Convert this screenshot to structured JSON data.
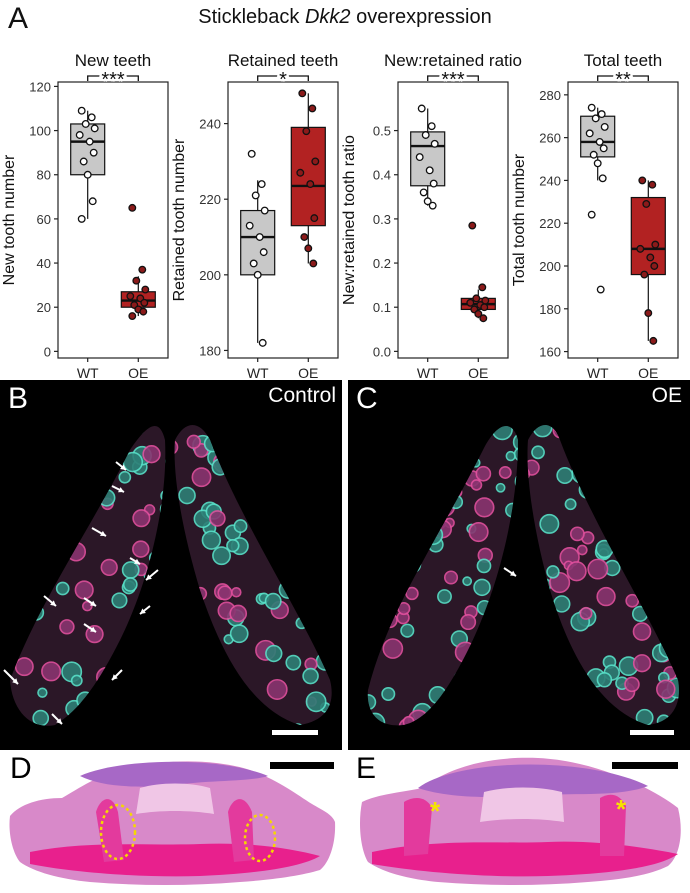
{
  "figure": {
    "panel_a_letter": "A",
    "title_prefix": "Stickleback ",
    "title_gene": "Dkk2",
    "title_suffix": " overexpression"
  },
  "colors": {
    "wt_fill": "#c8c8c8",
    "oe_fill": "#b22222",
    "wt_point": "#ffffff",
    "oe_point": "#8b1a1a"
  },
  "chart_data": [
    {
      "type": "box",
      "title": "New teeth",
      "ylabel": "New tooth number",
      "categories": [
        "WT",
        "OE"
      ],
      "ylim": [
        -3,
        122
      ],
      "yticks": [
        0,
        20,
        40,
        60,
        80,
        100,
        120
      ],
      "tick_labels": [
        "0",
        "20",
        "40",
        "60",
        "80",
        "100",
        "120"
      ],
      "significance": "***",
      "boxes": [
        {
          "group": "WT",
          "min": 60,
          "q1": 80,
          "median": 95,
          "q3": 103,
          "max": 109
        },
        {
          "group": "OE",
          "min": 16,
          "q1": 20,
          "median": 23,
          "q3": 27,
          "max": 34
        }
      ],
      "points": [
        {
          "group": "WT",
          "values": [
            109,
            106,
            103,
            101,
            98,
            95,
            90,
            86,
            80,
            68,
            60
          ]
        },
        {
          "group": "OE",
          "values": [
            65,
            37,
            32,
            28,
            25,
            24,
            22,
            21,
            19,
            18,
            16
          ]
        }
      ]
    },
    {
      "type": "box",
      "title": "Retained teeth",
      "ylabel": "Retained tooth number",
      "categories": [
        "WT",
        "OE"
      ],
      "ylim": [
        178,
        251
      ],
      "yticks": [
        180,
        200,
        220,
        240
      ],
      "tick_labels": [
        "180",
        "200",
        "220",
        "240"
      ],
      "significance": "*",
      "boxes": [
        {
          "group": "WT",
          "min": 182,
          "q1": 200,
          "median": 210,
          "q3": 217,
          "max": 225
        },
        {
          "group": "OE",
          "min": 203,
          "q1": 213,
          "median": 223.5,
          "q3": 239,
          "max": 248
        }
      ],
      "points": [
        {
          "group": "WT",
          "values": [
            232,
            224,
            221,
            217,
            213,
            210,
            206,
            203,
            200,
            182
          ]
        },
        {
          "group": "OE",
          "values": [
            248,
            244,
            238,
            230,
            227,
            224,
            215,
            210,
            207,
            203
          ]
        }
      ]
    },
    {
      "type": "box",
      "title": "New:retained ratio",
      "ylabel": "New:retained tooth ratio",
      "categories": [
        "WT",
        "OE"
      ],
      "ylim": [
        -0.015,
        0.61
      ],
      "yticks": [
        0.0,
        0.1,
        0.2,
        0.3,
        0.4,
        0.5
      ],
      "tick_labels": [
        "0.0",
        "0.1",
        "0.2",
        "0.3",
        "0.4",
        "0.5"
      ],
      "significance": "***",
      "boxes": [
        {
          "group": "WT",
          "min": 0.33,
          "q1": 0.375,
          "median": 0.465,
          "q3": 0.497,
          "max": 0.55
        },
        {
          "group": "OE",
          "min": 0.075,
          "q1": 0.095,
          "median": 0.107,
          "q3": 0.12,
          "max": 0.14
        }
      ],
      "points": [
        {
          "group": "WT",
          "values": [
            0.55,
            0.51,
            0.49,
            0.47,
            0.44,
            0.41,
            0.38,
            0.36,
            0.34,
            0.33
          ]
        },
        {
          "group": "OE",
          "values": [
            0.285,
            0.145,
            0.12,
            0.115,
            0.11,
            0.105,
            0.1,
            0.095,
            0.085,
            0.075
          ]
        }
      ]
    },
    {
      "type": "box",
      "title": "Total teeth",
      "ylabel": "Total tooth number",
      "categories": [
        "WT",
        "OE"
      ],
      "ylim": [
        157,
        286
      ],
      "yticks": [
        160,
        180,
        200,
        220,
        240,
        260,
        280
      ],
      "tick_labels": [
        "160",
        "180",
        "200",
        "220",
        "240",
        "260",
        "280"
      ],
      "significance": "**",
      "boxes": [
        {
          "group": "WT",
          "min": 240,
          "q1": 251,
          "median": 258,
          "q3": 270,
          "max": 274
        },
        {
          "group": "OE",
          "min": 165,
          "q1": 196,
          "median": 208,
          "q3": 232,
          "max": 240
        }
      ],
      "points": [
        {
          "group": "WT",
          "values": [
            274,
            271,
            269,
            265,
            262,
            258,
            255,
            252,
            248,
            241,
            224,
            189
          ]
        },
        {
          "group": "OE",
          "values": [
            240,
            238,
            229,
            210,
            208,
            204,
            200,
            196,
            178,
            165
          ]
        }
      ]
    }
  ],
  "panels": {
    "b": {
      "letter": "B",
      "label": "Control"
    },
    "c": {
      "letter": "C",
      "label": "OE"
    },
    "d": {
      "letter": "D"
    },
    "e": {
      "letter": "E",
      "asterisk": "*"
    }
  }
}
